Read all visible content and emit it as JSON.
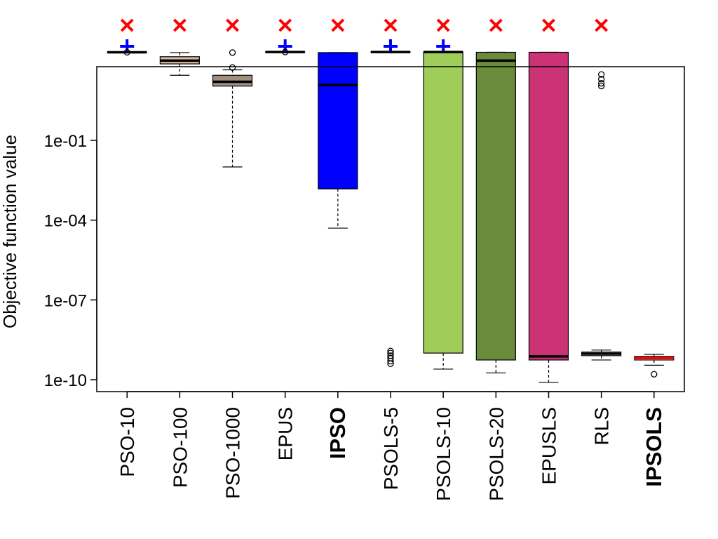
{
  "chart_data": {
    "type": "boxplot",
    "ylabel": "Objective function value",
    "yscale": "log10",
    "ylim": [
      5e-11,
      3000
    ],
    "yticks": [
      1e-10,
      1e-07,
      0.0001,
      0.1
    ],
    "ytick_labels": [
      "1e-10",
      "1e-07",
      "1e-04",
      "1e-01"
    ],
    "grid": false,
    "categories": [
      "PSO-10",
      "PSO-100",
      "PSO-1000",
      "EPUS",
      "IPSO",
      "PSOLS-5",
      "PSOLS-10",
      "PSOLS-20",
      "EPUSLS",
      "RLS",
      "IPSOLS"
    ],
    "bold_categories": [
      "IPSO",
      "IPSOLS"
    ],
    "boxes": [
      {
        "name": "PSO-10",
        "color": "#ffffff",
        "median_color": "#000000",
        "q1": 200,
        "median": 205,
        "q3": 210,
        "whislo": 200,
        "whishi": 210,
        "outliers": [
          205
        ]
      },
      {
        "name": "PSO-100",
        "color": "#d8b9a0",
        "median_color": "#000000",
        "q1": 75,
        "median": 100,
        "q3": 140,
        "whislo": 28,
        "whishi": 200,
        "outliers": []
      },
      {
        "name": "PSO-1000",
        "color": "#9e8f7e",
        "median_color": "#000000",
        "q1": 11,
        "median": 16,
        "q3": 28,
        "whislo": 0.01,
        "whishi": 45,
        "outliers": [
          55,
          200
        ]
      },
      {
        "name": "EPUS",
        "color": "#ffffff",
        "median_color": "#000000",
        "q1": 205,
        "median": 210,
        "q3": 212,
        "whislo": 205,
        "whishi": 212,
        "outliers": [
          210
        ]
      },
      {
        "name": "IPSO",
        "color": "#0000ff",
        "median_color": "#000000",
        "q1": 0.0015,
        "median": 12,
        "q3": 200,
        "whislo": 5e-05,
        "whishi": 200,
        "outliers": []
      },
      {
        "name": "PSOLS-5",
        "color": "#ffffff",
        "median_color": "#000000",
        "q1": 205,
        "median": 210,
        "q3": 212,
        "whislo": 205,
        "whishi": 212,
        "outliers": [
          1.2e-09,
          1e-09,
          8e-10,
          6.5e-10,
          5e-10,
          4e-10
        ]
      },
      {
        "name": "PSOLS-10",
        "color": "#a0cd5a",
        "median_color": "#000000",
        "q1": 1e-09,
        "median": 210,
        "q3": 212,
        "whislo": 2.5e-10,
        "whishi": 212,
        "outliers": []
      },
      {
        "name": "PSOLS-20",
        "color": "#6b8b3c",
        "median_color": "#000000",
        "q1": 5.5e-10,
        "median": 100,
        "q3": 205,
        "whislo": 1.8e-10,
        "whishi": 205,
        "outliers": []
      },
      {
        "name": "EPUSLS",
        "color": "#cc3377",
        "median_color": "#000000",
        "q1": 5.5e-10,
        "median": 7.5e-10,
        "q3": 205,
        "whislo": 8e-11,
        "whishi": 205,
        "outliers": []
      },
      {
        "name": "RLS",
        "color": "#ffffff",
        "median_color": "#000000",
        "q1": 8e-10,
        "median": 9.5e-10,
        "q3": 1.1e-09,
        "whislo": 5.5e-10,
        "whishi": 1.3e-09,
        "outliers": [
          30,
          20,
          14,
          11
        ]
      },
      {
        "name": "IPSOLS",
        "color": "#ffffff",
        "median_color": "#ff0000",
        "q1": 5.5e-10,
        "median": 6.5e-10,
        "q3": 7.5e-10,
        "whislo": 3.5e-10,
        "whishi": 9e-10,
        "outliers": [
          1.6e-10
        ]
      }
    ],
    "markers": {
      "x_marks": {
        "symbol": "×",
        "color": "#ff0000",
        "categories": [
          "PSO-10",
          "PSO-100",
          "PSO-1000",
          "EPUS",
          "IPSO",
          "PSOLS-5",
          "PSOLS-10",
          "PSOLS-20",
          "EPUSLS",
          "RLS"
        ]
      },
      "plus_marks": {
        "symbol": "+",
        "color": "#0000ff",
        "categories": [
          "PSO-10",
          "EPUS",
          "PSOLS-5",
          "PSOLS-10"
        ]
      }
    }
  }
}
